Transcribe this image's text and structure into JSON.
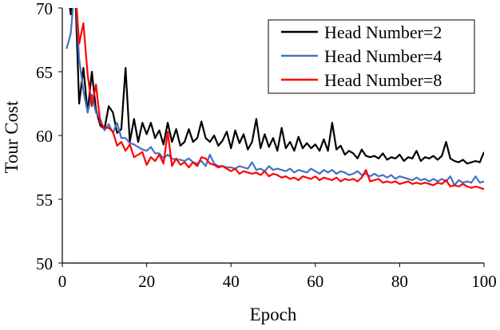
{
  "chart_data": {
    "type": "line",
    "title": "",
    "xlabel": "Epoch",
    "ylabel": "Tour Cost",
    "xlim": [
      0,
      100
    ],
    "ylim": [
      50,
      70
    ],
    "xticks": [
      0,
      20,
      40,
      60,
      80,
      100
    ],
    "yticks": [
      50,
      55,
      60,
      65,
      70
    ],
    "grid": false,
    "legend_position": "top-right",
    "series": [
      {
        "name": "Head Number=2",
        "color": "#000000",
        "points": [
          [
            1,
            72
          ],
          [
            2,
            69.5
          ],
          [
            3,
            72
          ],
          [
            4,
            62.5
          ],
          [
            5,
            65.3
          ],
          [
            6,
            61.8
          ],
          [
            7,
            65
          ],
          [
            8,
            62
          ],
          [
            9,
            60.8
          ],
          [
            10,
            60.5
          ],
          [
            11,
            62.3
          ],
          [
            12,
            61.8
          ],
          [
            13,
            60.2
          ],
          [
            14,
            60.5
          ],
          [
            15,
            65.3
          ],
          [
            16,
            59.5
          ],
          [
            17,
            61.3
          ],
          [
            18,
            59.5
          ],
          [
            19,
            61
          ],
          [
            20,
            60.1
          ],
          [
            21,
            61
          ],
          [
            22,
            59.8
          ],
          [
            23,
            60.4
          ],
          [
            24,
            59.3
          ],
          [
            25,
            61
          ],
          [
            26,
            59.5
          ],
          [
            27,
            60.5
          ],
          [
            28,
            59.2
          ],
          [
            29,
            59.5
          ],
          [
            30,
            60.5
          ],
          [
            31,
            59.5
          ],
          [
            32,
            59.8
          ],
          [
            33,
            61.1
          ],
          [
            34,
            59.8
          ],
          [
            35,
            59.5
          ],
          [
            36,
            60
          ],
          [
            37,
            59.2
          ],
          [
            38,
            59.6
          ],
          [
            39,
            60.3
          ],
          [
            40,
            59
          ],
          [
            41,
            60.4
          ],
          [
            42,
            59.4
          ],
          [
            43,
            60.1
          ],
          [
            44,
            58.9
          ],
          [
            45,
            59.5
          ],
          [
            46,
            61.3
          ],
          [
            47,
            59
          ],
          [
            48,
            60.1
          ],
          [
            49,
            59.1
          ],
          [
            50,
            59.8
          ],
          [
            51,
            58.8
          ],
          [
            52,
            60.6
          ],
          [
            53,
            59
          ],
          [
            54,
            59.5
          ],
          [
            55,
            58.8
          ],
          [
            56,
            59.9
          ],
          [
            57,
            59
          ],
          [
            58,
            59.4
          ],
          [
            59,
            59
          ],
          [
            60,
            59.3
          ],
          [
            61,
            58.8
          ],
          [
            62,
            59.7
          ],
          [
            63,
            58.8
          ],
          [
            64,
            61
          ],
          [
            65,
            58.9
          ],
          [
            66,
            59.2
          ],
          [
            67,
            58.5
          ],
          [
            68,
            58.8
          ],
          [
            69,
            58.6
          ],
          [
            70,
            58.2
          ],
          [
            71,
            58.9
          ],
          [
            72,
            58.4
          ],
          [
            73,
            58.3
          ],
          [
            74,
            58.4
          ],
          [
            75,
            58.2
          ],
          [
            76,
            58.6
          ],
          [
            77,
            58.1
          ],
          [
            78,
            58.3
          ],
          [
            79,
            58.2
          ],
          [
            80,
            58.5
          ],
          [
            81,
            58
          ],
          [
            82,
            58.3
          ],
          [
            83,
            58.2
          ],
          [
            84,
            58.8
          ],
          [
            85,
            58
          ],
          [
            86,
            58.3
          ],
          [
            87,
            58.2
          ],
          [
            88,
            58.4
          ],
          [
            89,
            58.1
          ],
          [
            90,
            58.4
          ],
          [
            91,
            59.5
          ],
          [
            92,
            58.2
          ],
          [
            93,
            58
          ],
          [
            94,
            57.9
          ],
          [
            95,
            58.1
          ],
          [
            96,
            57.8
          ],
          [
            97,
            57.9
          ],
          [
            98,
            58
          ],
          [
            99,
            57.9
          ],
          [
            100,
            58.7
          ]
        ]
      },
      {
        "name": "Head Number=4",
        "color": "#4472C4",
        "points": [
          [
            1,
            66.8
          ],
          [
            2,
            68
          ],
          [
            3,
            72
          ],
          [
            4,
            66
          ],
          [
            5,
            63.5
          ],
          [
            6,
            61.8
          ],
          [
            7,
            63.2
          ],
          [
            8,
            61.8
          ],
          [
            9,
            61.3
          ],
          [
            10,
            60.4
          ],
          [
            11,
            60.9
          ],
          [
            12,
            60.2
          ],
          [
            13,
            61
          ],
          [
            14,
            59.8
          ],
          [
            15,
            59.8
          ],
          [
            16,
            59.4
          ],
          [
            17,
            59.3
          ],
          [
            18,
            59.1
          ],
          [
            19,
            58.9
          ],
          [
            20,
            58.8
          ],
          [
            21,
            59.1
          ],
          [
            22,
            58.6
          ],
          [
            23,
            58.6
          ],
          [
            24,
            58.2
          ],
          [
            25,
            58.5
          ],
          [
            26,
            58.2
          ],
          [
            27,
            58.1
          ],
          [
            28,
            58.1
          ],
          [
            29,
            58
          ],
          [
            30,
            58.2
          ],
          [
            31,
            57.9
          ],
          [
            32,
            57.8
          ],
          [
            33,
            58
          ],
          [
            34,
            57.6
          ],
          [
            35,
            58.5
          ],
          [
            36,
            57.8
          ],
          [
            37,
            57.6
          ],
          [
            38,
            57.6
          ],
          [
            39,
            57.5
          ],
          [
            40,
            57.5
          ],
          [
            41,
            57.4
          ],
          [
            42,
            57.6
          ],
          [
            43,
            57.5
          ],
          [
            44,
            57.4
          ],
          [
            45,
            57.9
          ],
          [
            46,
            57.3
          ],
          [
            47,
            57.4
          ],
          [
            48,
            57.2
          ],
          [
            49,
            57.6
          ],
          [
            50,
            57.3
          ],
          [
            51,
            57.4
          ],
          [
            52,
            57.3
          ],
          [
            53,
            57.2
          ],
          [
            54,
            57.4
          ],
          [
            55,
            57.1
          ],
          [
            56,
            57.3
          ],
          [
            57,
            57.2
          ],
          [
            58,
            57.1
          ],
          [
            59,
            57.4
          ],
          [
            60,
            57.2
          ],
          [
            61,
            57
          ],
          [
            62,
            57.3
          ],
          [
            63,
            57.1
          ],
          [
            64,
            57.3
          ],
          [
            65,
            57
          ],
          [
            66,
            57.2
          ],
          [
            67,
            57.1
          ],
          [
            68,
            56.9
          ],
          [
            69,
            57
          ],
          [
            70,
            57.2
          ],
          [
            71,
            56.9
          ],
          [
            72,
            57
          ],
          [
            73,
            56.8
          ],
          [
            74,
            57
          ],
          [
            75,
            56.8
          ],
          [
            76,
            56.9
          ],
          [
            77,
            56.7
          ],
          [
            78,
            56.9
          ],
          [
            79,
            56.6
          ],
          [
            80,
            56.8
          ],
          [
            81,
            56.7
          ],
          [
            82,
            56.6
          ],
          [
            83,
            56.5
          ],
          [
            84,
            56.7
          ],
          [
            85,
            56.5
          ],
          [
            86,
            56.6
          ],
          [
            87,
            56.4
          ],
          [
            88,
            56.6
          ],
          [
            89,
            56.4
          ],
          [
            90,
            56.6
          ],
          [
            91,
            56.4
          ],
          [
            92,
            56.8
          ],
          [
            93,
            56.1
          ],
          [
            94,
            56.5
          ],
          [
            95,
            56.3
          ],
          [
            96,
            56.4
          ],
          [
            97,
            56.3
          ],
          [
            98,
            56.8
          ],
          [
            99,
            56.3
          ],
          [
            100,
            56.4
          ]
        ]
      },
      {
        "name": "Head Number=8",
        "color": "#FF0000",
        "points": [
          [
            3,
            72
          ],
          [
            4,
            67.2
          ],
          [
            5,
            68.8
          ],
          [
            6,
            64.8
          ],
          [
            7,
            62.3
          ],
          [
            8,
            64
          ],
          [
            9,
            61
          ],
          [
            10,
            60.6
          ],
          [
            11,
            60.6
          ],
          [
            12,
            60.3
          ],
          [
            13,
            59.2
          ],
          [
            14,
            59.5
          ],
          [
            15,
            58.8
          ],
          [
            16,
            59.3
          ],
          [
            17,
            58.3
          ],
          [
            18,
            58.5
          ],
          [
            19,
            58.7
          ],
          [
            20,
            57.7
          ],
          [
            21,
            58.3
          ],
          [
            22,
            58
          ],
          [
            23,
            58.5
          ],
          [
            24,
            57.8
          ],
          [
            25,
            60.3
          ],
          [
            26,
            57.6
          ],
          [
            27,
            58.2
          ],
          [
            28,
            57.7
          ],
          [
            29,
            57.9
          ],
          [
            30,
            57.5
          ],
          [
            31,
            57.9
          ],
          [
            32,
            57.6
          ],
          [
            33,
            58.3
          ],
          [
            34,
            58.2
          ],
          [
            35,
            57.8
          ],
          [
            36,
            57.7
          ],
          [
            37,
            57.5
          ],
          [
            38,
            57.6
          ],
          [
            39,
            57.4
          ],
          [
            40,
            57.2
          ],
          [
            41,
            57.4
          ],
          [
            42,
            57
          ],
          [
            43,
            57.2
          ],
          [
            44,
            57.1
          ],
          [
            45,
            57
          ],
          [
            46,
            57.1
          ],
          [
            47,
            56.9
          ],
          [
            48,
            57.2
          ],
          [
            49,
            56.8
          ],
          [
            50,
            57
          ],
          [
            51,
            56.9
          ],
          [
            52,
            56.7
          ],
          [
            53,
            56.8
          ],
          [
            54,
            56.6
          ],
          [
            55,
            56.7
          ],
          [
            56,
            56.5
          ],
          [
            57,
            56.8
          ],
          [
            58,
            56.7
          ],
          [
            59,
            56.6
          ],
          [
            60,
            56.8
          ],
          [
            61,
            56.5
          ],
          [
            62,
            56.7
          ],
          [
            63,
            56.6
          ],
          [
            64,
            56.5
          ],
          [
            65,
            56.7
          ],
          [
            66,
            56.4
          ],
          [
            67,
            56.6
          ],
          [
            68,
            56.5
          ],
          [
            69,
            56.6
          ],
          [
            70,
            56.4
          ],
          [
            71,
            56.7
          ],
          [
            72,
            57.3
          ],
          [
            73,
            56.4
          ],
          [
            74,
            56.5
          ],
          [
            75,
            56.6
          ],
          [
            76,
            56.3
          ],
          [
            77,
            56.4
          ],
          [
            78,
            56.3
          ],
          [
            79,
            56.4
          ],
          [
            80,
            56.2
          ],
          [
            81,
            56.3
          ],
          [
            82,
            56.4
          ],
          [
            83,
            56.2
          ],
          [
            84,
            56.3
          ],
          [
            85,
            56.2
          ],
          [
            86,
            56.3
          ],
          [
            87,
            56.2
          ],
          [
            88,
            56.1
          ],
          [
            89,
            56.3
          ],
          [
            90,
            56.2
          ],
          [
            91,
            56.5
          ],
          [
            92,
            56
          ],
          [
            93,
            56.1
          ],
          [
            94,
            56
          ],
          [
            95,
            56.2
          ],
          [
            96,
            56
          ],
          [
            97,
            55.9
          ],
          [
            98,
            56
          ],
          [
            99,
            55.9
          ],
          [
            100,
            55.8
          ]
        ]
      }
    ]
  }
}
